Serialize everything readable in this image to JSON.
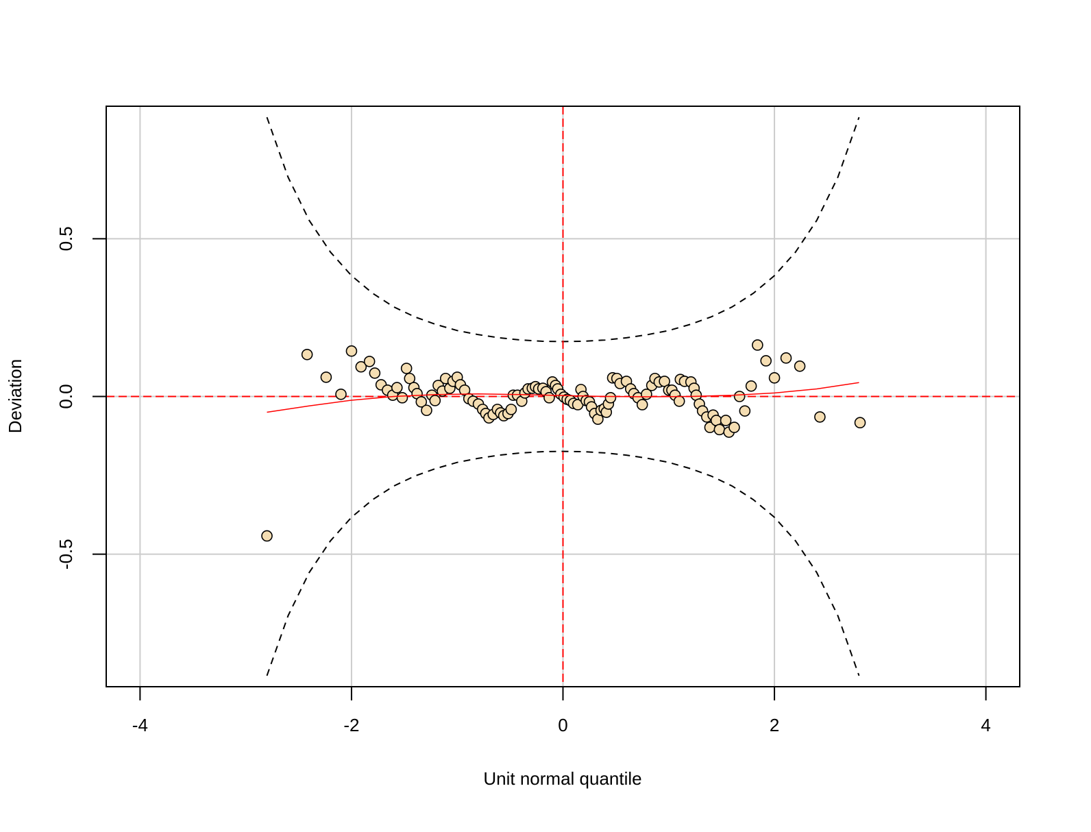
{
  "chart_data": {
    "type": "scatter",
    "xlabel": "Unit normal quantile",
    "ylabel": "Deviation",
    "xlim": [
      -4.32,
      4.32
    ],
    "ylim": [
      -0.92,
      0.92
    ],
    "xticks": [
      -4,
      -2,
      0,
      2,
      4
    ],
    "yticks": [
      {
        "value": -0.5,
        "label": "-0.5"
      },
      {
        "value": 0,
        "label": "0.0"
      },
      {
        "value": 0.5,
        "label": "0.5"
      }
    ],
    "grid": true,
    "hline": 0,
    "vline": 0,
    "reference_color": "#ff0000",
    "point_color": "#f5deb3",
    "x": [
      -2.8,
      -2.42,
      -2.24,
      -2.1,
      -2.0,
      -1.91,
      -1.83,
      -1.78,
      -1.72,
      -1.66,
      -1.61,
      -1.57,
      -1.52,
      -1.48,
      -1.45,
      -1.41,
      -1.38,
      -1.34,
      -1.29,
      -1.24,
      -1.21,
      -1.18,
      -1.14,
      -1.11,
      -1.07,
      -1.04,
      -1.0,
      -0.97,
      -0.93,
      -0.89,
      -0.85,
      -0.8,
      -0.76,
      -0.73,
      -0.7,
      -0.66,
      -0.62,
      -0.59,
      -0.56,
      -0.52,
      -0.49,
      -0.47,
      -0.43,
      -0.39,
      -0.36,
      -0.33,
      -0.29,
      -0.26,
      -0.23,
      -0.19,
      -0.16,
      -0.13,
      -0.1,
      -0.07,
      -0.05,
      -0.02,
      0.01,
      0.04,
      0.07,
      0.1,
      0.14,
      0.17,
      0.19,
      0.22,
      0.25,
      0.27,
      0.3,
      0.33,
      0.36,
      0.39,
      0.41,
      0.43,
      0.45,
      0.47,
      0.51,
      0.54,
      0.6,
      0.64,
      0.67,
      0.71,
      0.75,
      0.79,
      0.84,
      0.87,
      0.91,
      0.96,
      1.0,
      1.03,
      1.06,
      1.1,
      1.11,
      1.15,
      1.21,
      1.24,
      1.26,
      1.29,
      1.32,
      1.36,
      1.39,
      1.42,
      1.45,
      1.48,
      1.54,
      1.57,
      1.62,
      1.67,
      1.72,
      1.78,
      1.84,
      1.92,
      2.0,
      2.11,
      2.24,
      2.43,
      2.81
    ],
    "values": [
      -0.442,
      0.133,
      0.061,
      0.007,
      0.144,
      0.094,
      0.111,
      0.074,
      0.037,
      0.02,
      0.004,
      0.028,
      -0.004,
      0.089,
      0.057,
      0.028,
      0.009,
      -0.017,
      -0.044,
      0.004,
      -0.013,
      0.035,
      0.017,
      0.057,
      0.026,
      0.048,
      0.061,
      0.037,
      0.02,
      -0.007,
      -0.015,
      -0.024,
      -0.041,
      -0.054,
      -0.068,
      -0.057,
      -0.041,
      -0.052,
      -0.061,
      -0.054,
      -0.041,
      0.004,
      0.004,
      -0.015,
      0.011,
      0.024,
      0.026,
      0.031,
      0.024,
      0.026,
      0.015,
      -0.004,
      0.046,
      0.035,
      0.024,
      0.007,
      -0.002,
      -0.009,
      -0.013,
      -0.022,
      -0.026,
      0.022,
      0.0,
      -0.013,
      -0.017,
      -0.033,
      -0.054,
      -0.072,
      -0.044,
      -0.039,
      -0.05,
      -0.024,
      -0.004,
      0.059,
      0.057,
      0.041,
      0.048,
      0.024,
      0.009,
      -0.004,
      -0.026,
      0.007,
      0.035,
      0.057,
      0.046,
      0.048,
      0.02,
      0.02,
      0.004,
      -0.015,
      0.054,
      0.048,
      0.046,
      0.026,
      0.004,
      -0.024,
      -0.046,
      -0.065,
      -0.098,
      -0.059,
      -0.076,
      -0.105,
      -0.076,
      -0.113,
      -0.098,
      0.0,
      -0.046,
      0.033,
      0.163,
      0.113,
      0.059,
      0.122,
      0.096,
      -0.065,
      -0.083
    ],
    "bands": {
      "color": "#000000",
      "x": [
        -2.8,
        -2.6,
        -2.4,
        -2.2,
        -2.0,
        -1.8,
        -1.6,
        -1.4,
        -1.2,
        -1.0,
        -0.8,
        -0.6,
        -0.4,
        -0.2,
        0,
        0.2,
        0.4,
        0.6,
        0.8,
        1.0,
        1.2,
        1.4,
        1.6,
        1.8,
        2.0,
        2.2,
        2.4,
        2.6,
        2.8
      ],
      "upper": [
        0.885,
        0.695,
        0.558,
        0.458,
        0.383,
        0.327,
        0.284,
        0.252,
        0.228,
        0.209,
        0.196,
        0.186,
        0.179,
        0.175,
        0.174,
        0.175,
        0.179,
        0.186,
        0.196,
        0.209,
        0.228,
        0.252,
        0.284,
        0.327,
        0.383,
        0.458,
        0.558,
        0.695,
        0.885
      ],
      "lower": [
        -0.885,
        -0.695,
        -0.558,
        -0.458,
        -0.383,
        -0.327,
        -0.284,
        -0.252,
        -0.228,
        -0.209,
        -0.196,
        -0.186,
        -0.179,
        -0.175,
        -0.174,
        -0.175,
        -0.179,
        -0.186,
        -0.196,
        -0.209,
        -0.228,
        -0.252,
        -0.284,
        -0.327,
        -0.383,
        -0.458,
        -0.558,
        -0.695,
        -0.885
      ]
    },
    "fit": {
      "color": "#ff0000",
      "x": [
        -2.8,
        -2.4,
        -2.0,
        -1.6,
        -1.2,
        -0.8,
        -0.4,
        0,
        0.4,
        0.8,
        1.2,
        1.6,
        2.0,
        2.4,
        2.8
      ],
      "values": [
        -0.05,
        -0.03,
        -0.012,
        0.0,
        0.006,
        0.008,
        0.006,
        0.003,
        0.0,
        -0.001,
        0.0,
        0.004,
        0.011,
        0.024,
        0.044
      ]
    }
  }
}
